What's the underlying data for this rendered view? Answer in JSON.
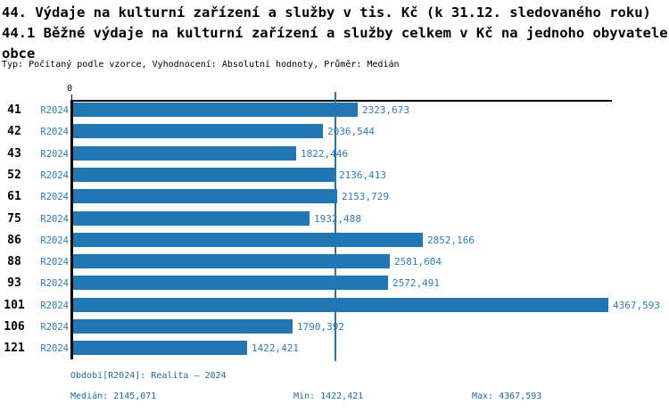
{
  "header": {
    "title_lines": [
      "44. Výdaje na kulturní zařízení a služby v tis. Kč (k 31.12. sledovaného roku)",
      "44.1 Běžné výdaje na kulturní zařízení a služby celkem v Kč na jednoho obyvatele",
      "obce"
    ],
    "subtitle": "Typ: Počítaný podle vzorce, Vyhodnocení: Absolutní hodnoty, Průměr: Medián"
  },
  "chart_data": {
    "type": "bar",
    "orientation": "horizontal",
    "title": "Běžné výdaje na kulturní zařízení a služby celkem v Kč na jednoho obyvatele obce",
    "categories": [
      "41",
      "42",
      "43",
      "52",
      "61",
      "75",
      "86",
      "88",
      "93",
      "101",
      "106",
      "121"
    ],
    "series_label": "R2024",
    "values": [
      2323.673,
      2036.544,
      1822.446,
      2136.413,
      2153.729,
      1932.488,
      2852.166,
      2581.604,
      2572.491,
      4367.593,
      1790.392,
      1422.421
    ],
    "value_labels": [
      "2323,673",
      "2036,544",
      "1822,446",
      "2136,413",
      "2153,729",
      "1932,488",
      "2852,166",
      "2581,604",
      "2572,491",
      "4367,593",
      "1790,392",
      "1422,421"
    ],
    "x_axis": {
      "origin_label": "0",
      "min": 0,
      "max": 4367.593
    },
    "median": 2145.071,
    "median_display": "2145,071",
    "grid": false,
    "bar_color": "#2276b4",
    "median_line_color": "#2276b4",
    "label_color": "#2e7cb8"
  },
  "footer": {
    "period": "Období[R2024]: Realita – 2024",
    "median": "Medián: 2145,071",
    "min": "Min: 1422,421",
    "max": "Max: 4367,593"
  }
}
